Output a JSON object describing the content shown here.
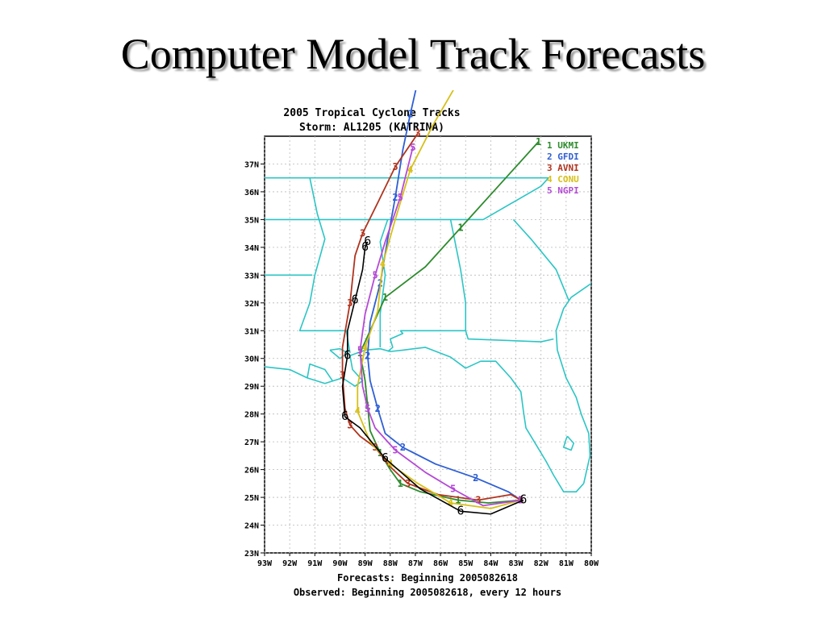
{
  "slide": {
    "title": "Computer Model Track Forecasts"
  },
  "colors": {
    "map": "#2cc5c5",
    "grid": "#b8b8b8",
    "UKMI": "#2e8b2e",
    "GFDI": "#2e5fd4",
    "AVNI": "#b0341e",
    "CONU": "#d7c01a",
    "NGPI": "#b44ad6",
    "observed": "#000000"
  },
  "chart_data": {
    "type": "line",
    "title": "2005 Tropical Cyclone Tracks",
    "subtitle": "Storm: AL1205 (KATRINA)",
    "footer_1": "Forecasts: Beginning 2005082618",
    "footer_2": "Observed: Beginning 2005082618, every 12 hours",
    "xlim": [
      -93,
      -80
    ],
    "ylim": [
      23,
      38
    ],
    "x_ticks": [
      "93W",
      "92W",
      "91W",
      "90W",
      "89W",
      "88W",
      "87W",
      "86W",
      "85W",
      "84W",
      "83W",
      "82W",
      "81W",
      "80W"
    ],
    "y_ticks": [
      "23N",
      "24N",
      "25N",
      "26N",
      "27N",
      "28N",
      "29N",
      "30N",
      "31N",
      "32N",
      "33N",
      "34N",
      "35N",
      "36N",
      "37N"
    ],
    "grid": true,
    "legend_position": "top-right",
    "series": [
      {
        "num": "1",
        "name": "UKMI",
        "color_key": "UKMI",
        "lon": [
          -82.8,
          -84.1,
          -85.3,
          -86.8,
          -87.6,
          -88.0,
          -88.4,
          -88.8,
          -88.9,
          -89.0,
          -89.2,
          -88.8,
          -88.2,
          -86.6,
          -85.2,
          -83.9,
          -82.1
        ],
        "lat": [
          24.9,
          24.8,
          24.9,
          25.2,
          25.5,
          26.0,
          26.6,
          27.4,
          28.3,
          29.2,
          30.2,
          31.0,
          32.2,
          33.3,
          34.7,
          36.0,
          37.8
        ]
      },
      {
        "num": "2",
        "name": "GFDI",
        "color_key": "GFDI",
        "lon": [
          -82.8,
          -83.3,
          -84.6,
          -86.2,
          -87.5,
          -88.2,
          -88.5,
          -88.8,
          -88.9,
          -88.8,
          -88.4,
          -88.1,
          -87.8,
          -87.5,
          -87.2,
          -86.9
        ],
        "lat": [
          24.9,
          25.2,
          25.7,
          26.2,
          26.8,
          27.3,
          28.2,
          29.2,
          30.1,
          31.3,
          32.7,
          34.3,
          35.8,
          37.5,
          38.8,
          40.0
        ]
      },
      {
        "num": "3",
        "name": "AVNI",
        "color_key": "AVNI",
        "lon": [
          -82.8,
          -83.2,
          -84.5,
          -86.1,
          -87.3,
          -88.0,
          -88.6,
          -89.2,
          -89.6,
          -89.8,
          -89.9,
          -89.9,
          -89.6,
          -89.4,
          -89.1,
          -88.5,
          -87.8,
          -86.9
        ],
        "lat": [
          24.9,
          25.1,
          24.9,
          25.1,
          25.5,
          26.1,
          26.8,
          27.2,
          27.6,
          28.2,
          29.4,
          30.4,
          32.0,
          33.7,
          34.5,
          35.6,
          36.9,
          38.1
        ]
      },
      {
        "num": "4",
        "name": "CONU",
        "color_key": "CONU",
        "lon": [
          -82.8,
          -84.0,
          -85.6,
          -86.9,
          -88.0,
          -88.8,
          -89.3,
          -89.3,
          -89.0,
          -88.5,
          -88.3,
          -87.8,
          -87.2,
          -86.3,
          -85.4
        ],
        "lat": [
          24.9,
          24.6,
          24.8,
          25.5,
          26.2,
          27.0,
          28.1,
          29.0,
          30.4,
          31.7,
          33.4,
          35.0,
          36.8,
          38.4,
          39.8
        ]
      },
      {
        "num": "5",
        "name": "NGPI",
        "color_key": "NGPI",
        "lon": [
          -82.8,
          -84.3,
          -85.5,
          -86.6,
          -87.8,
          -88.6,
          -88.9,
          -89.1,
          -89.2,
          -89.0,
          -88.6,
          -88.2,
          -87.6,
          -87.1
        ],
        "lat": [
          24.9,
          24.7,
          25.3,
          25.9,
          26.7,
          27.5,
          28.2,
          29.0,
          30.3,
          31.6,
          33.0,
          34.2,
          35.8,
          37.6
        ]
      },
      {
        "num": "6",
        "name": "Observed",
        "color_key": "observed",
        "lon": [
          -82.7,
          -84.0,
          -85.2,
          -86.8,
          -88.2,
          -89.2,
          -89.8,
          -89.9,
          -89.7,
          -89.7,
          -89.4,
          -89.1,
          -89.0,
          -88.9
        ],
        "lat": [
          24.9,
          24.4,
          24.5,
          25.3,
          26.4,
          27.5,
          27.9,
          29.0,
          30.1,
          31.0,
          32.1,
          33.2,
          34.0,
          34.2
        ]
      }
    ]
  }
}
